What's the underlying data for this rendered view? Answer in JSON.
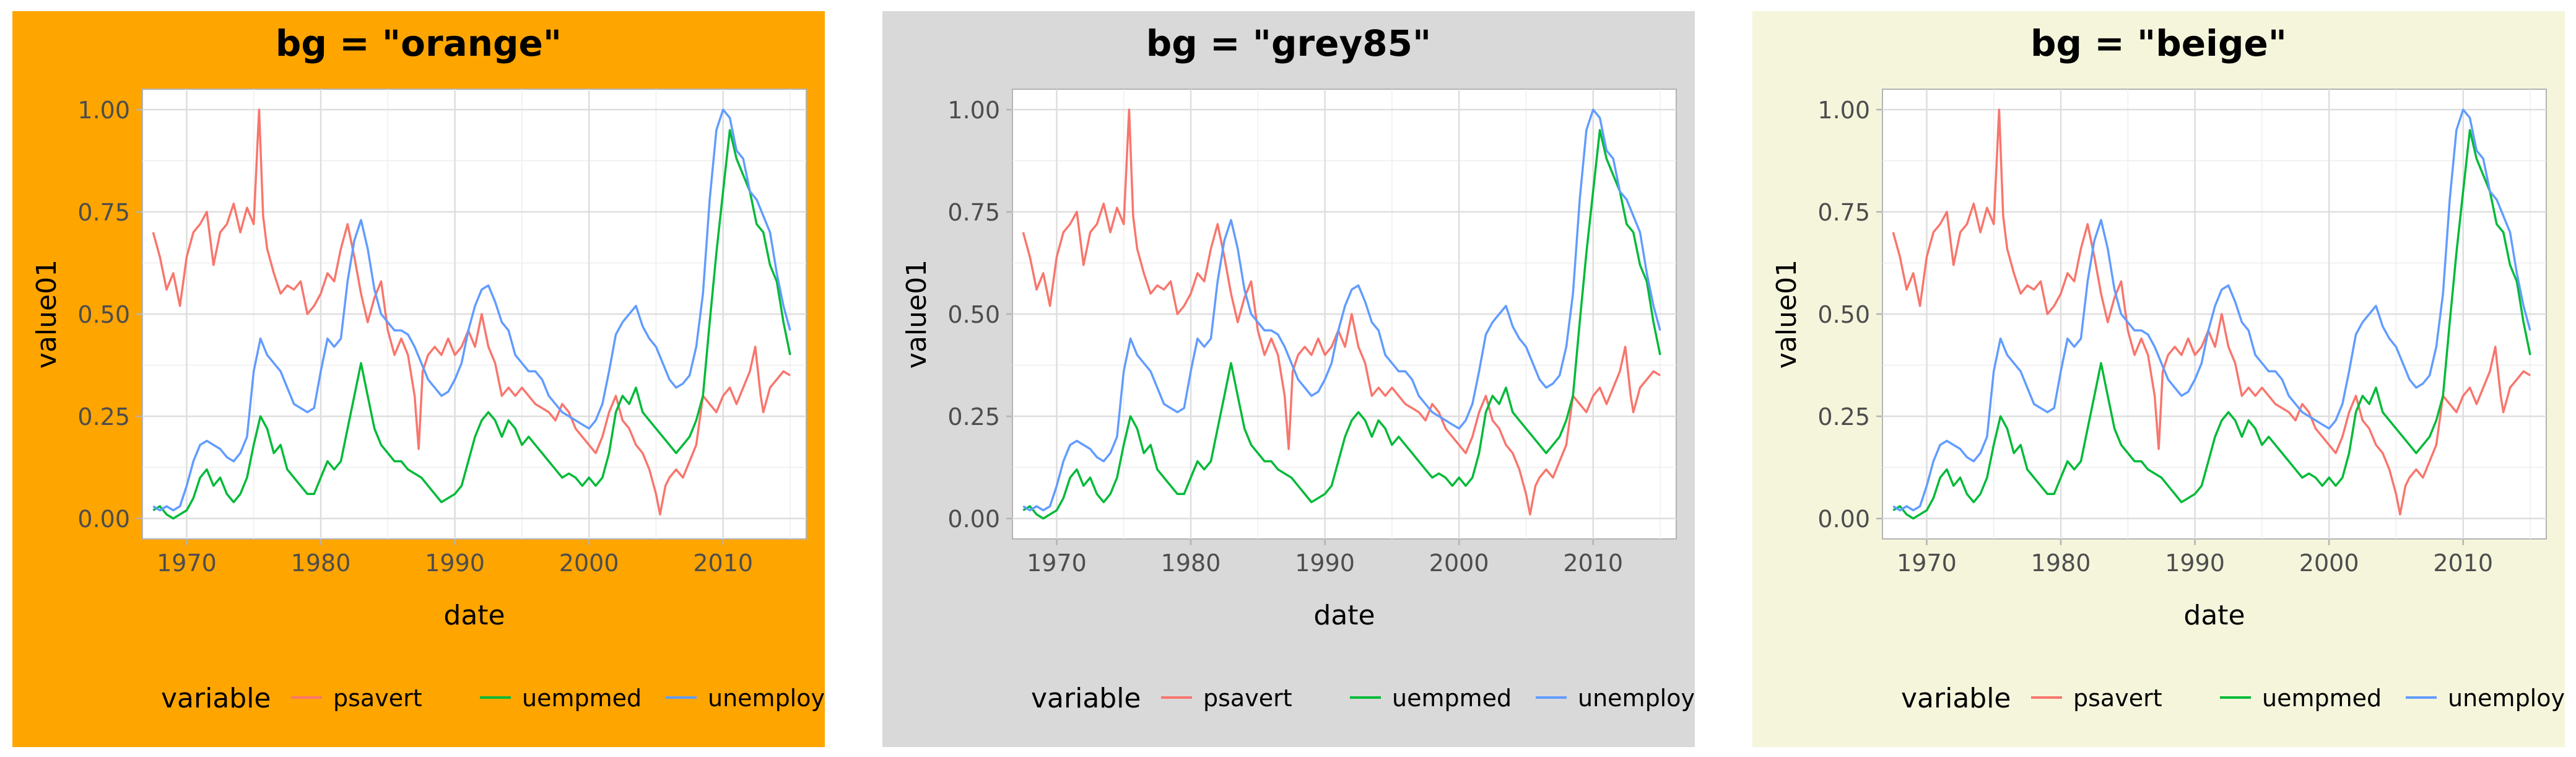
{
  "chart_data": [
    {
      "type": "line",
      "title": "bg = \"orange\"",
      "background": "#FFA500",
      "xlabel": "date",
      "ylabel": "value01",
      "xlim": [
        1966.7,
        2016.2
      ],
      "ylim": [
        -0.05,
        1.05
      ],
      "x_ticks": [
        1970,
        1980,
        1990,
        2000,
        2010
      ],
      "x_tick_labels": [
        "1970",
        "1980",
        "1990",
        "2000",
        "2010"
      ],
      "y_ticks": [
        0,
        0.25,
        0.5,
        0.75,
        1
      ],
      "y_tick_labels": [
        "0.00",
        "0.25",
        "0.50",
        "0.75",
        "1.00"
      ],
      "grid": true,
      "legend_title": "variable",
      "legend_position": "bottom"
    },
    {
      "type": "line",
      "title": "bg = \"grey85\"",
      "background": "#D9D9D9",
      "xlabel": "date",
      "ylabel": "value01",
      "xlim": [
        1966.7,
        2016.2
      ],
      "ylim": [
        -0.05,
        1.05
      ],
      "x_ticks": [
        1970,
        1980,
        1990,
        2000,
        2010
      ],
      "x_tick_labels": [
        "1970",
        "1980",
        "1990",
        "2000",
        "2010"
      ],
      "y_ticks": [
        0,
        0.25,
        0.5,
        0.75,
        1
      ],
      "y_tick_labels": [
        "0.00",
        "0.25",
        "0.50",
        "0.75",
        "1.00"
      ],
      "grid": true,
      "legend_title": "variable",
      "legend_position": "bottom"
    },
    {
      "type": "line",
      "title": "bg = \"beige\"",
      "background": "#F5F5DC",
      "xlabel": "date",
      "ylabel": "value01",
      "xlim": [
        1966.7,
        2016.2
      ],
      "ylim": [
        -0.05,
        1.05
      ],
      "x_ticks": [
        1970,
        1980,
        1990,
        2000,
        2010
      ],
      "x_tick_labels": [
        "1970",
        "1980",
        "1990",
        "2000",
        "2010"
      ],
      "y_ticks": [
        0,
        0.25,
        0.5,
        0.75,
        1
      ],
      "y_tick_labels": [
        "0.00",
        "0.25",
        "0.50",
        "0.75",
        "1.00"
      ],
      "grid": true,
      "legend_title": "variable",
      "legend_position": "bottom"
    }
  ],
  "series": [
    {
      "name": "psavert",
      "color": "#F8766D",
      "points": [
        [
          1967.5,
          0.7
        ],
        [
          1968,
          0.64
        ],
        [
          1968.5,
          0.56
        ],
        [
          1969,
          0.6
        ],
        [
          1969.5,
          0.52
        ],
        [
          1970,
          0.64
        ],
        [
          1970.5,
          0.7
        ],
        [
          1971,
          0.72
        ],
        [
          1971.5,
          0.75
        ],
        [
          1972,
          0.62
        ],
        [
          1972.5,
          0.7
        ],
        [
          1973,
          0.72
        ],
        [
          1973.5,
          0.77
        ],
        [
          1974,
          0.7
        ],
        [
          1974.5,
          0.76
        ],
        [
          1975,
          0.72
        ],
        [
          1975.4,
          1.0
        ],
        [
          1975.7,
          0.74
        ],
        [
          1976,
          0.66
        ],
        [
          1976.5,
          0.6
        ],
        [
          1977,
          0.55
        ],
        [
          1977.5,
          0.57
        ],
        [
          1978,
          0.56
        ],
        [
          1978.5,
          0.58
        ],
        [
          1979,
          0.5
        ],
        [
          1979.5,
          0.52
        ],
        [
          1980,
          0.55
        ],
        [
          1980.5,
          0.6
        ],
        [
          1981,
          0.58
        ],
        [
          1981.5,
          0.66
        ],
        [
          1982,
          0.72
        ],
        [
          1982.5,
          0.64
        ],
        [
          1983,
          0.55
        ],
        [
          1983.5,
          0.48
        ],
        [
          1984,
          0.54
        ],
        [
          1984.5,
          0.58
        ],
        [
          1985,
          0.46
        ],
        [
          1985.5,
          0.4
        ],
        [
          1986,
          0.44
        ],
        [
          1986.5,
          0.4
        ],
        [
          1987,
          0.3
        ],
        [
          1987.3,
          0.17
        ],
        [
          1987.6,
          0.36
        ],
        [
          1988,
          0.4
        ],
        [
          1988.5,
          0.42
        ],
        [
          1989,
          0.4
        ],
        [
          1989.5,
          0.44
        ],
        [
          1990,
          0.4
        ],
        [
          1990.5,
          0.42
        ],
        [
          1991,
          0.46
        ],
        [
          1991.5,
          0.42
        ],
        [
          1992,
          0.5
        ],
        [
          1992.5,
          0.42
        ],
        [
          1993,
          0.38
        ],
        [
          1993.5,
          0.3
        ],
        [
          1994,
          0.32
        ],
        [
          1994.5,
          0.3
        ],
        [
          1995,
          0.32
        ],
        [
          1995.5,
          0.3
        ],
        [
          1996,
          0.28
        ],
        [
          1996.5,
          0.27
        ],
        [
          1997,
          0.26
        ],
        [
          1997.5,
          0.24
        ],
        [
          1998,
          0.28
        ],
        [
          1998.5,
          0.26
        ],
        [
          1999,
          0.22
        ],
        [
          1999.5,
          0.2
        ],
        [
          2000,
          0.18
        ],
        [
          2000.5,
          0.16
        ],
        [
          2001,
          0.2
        ],
        [
          2001.5,
          0.26
        ],
        [
          2002,
          0.3
        ],
        [
          2002.5,
          0.24
        ],
        [
          2003,
          0.22
        ],
        [
          2003.5,
          0.18
        ],
        [
          2004,
          0.16
        ],
        [
          2004.5,
          0.12
        ],
        [
          2005,
          0.06
        ],
        [
          2005.3,
          0.01
        ],
        [
          2005.7,
          0.08
        ],
        [
          2006,
          0.1
        ],
        [
          2006.5,
          0.12
        ],
        [
          2007,
          0.1
        ],
        [
          2007.5,
          0.14
        ],
        [
          2008,
          0.18
        ],
        [
          2008.5,
          0.3
        ],
        [
          2009,
          0.28
        ],
        [
          2009.5,
          0.26
        ],
        [
          2010,
          0.3
        ],
        [
          2010.5,
          0.32
        ],
        [
          2011,
          0.28
        ],
        [
          2011.5,
          0.32
        ],
        [
          2012,
          0.36
        ],
        [
          2012.4,
          0.42
        ],
        [
          2012.8,
          0.3
        ],
        [
          2013,
          0.26
        ],
        [
          2013.5,
          0.32
        ],
        [
          2014,
          0.34
        ],
        [
          2014.5,
          0.36
        ],
        [
          2015,
          0.35
        ]
      ]
    },
    {
      "name": "uempmed",
      "color": "#00BA38",
      "points": [
        [
          1967.5,
          0.02
        ],
        [
          1968,
          0.03
        ],
        [
          1968.5,
          0.01
        ],
        [
          1969,
          0.0
        ],
        [
          1969.5,
          0.01
        ],
        [
          1970,
          0.02
        ],
        [
          1970.5,
          0.05
        ],
        [
          1971,
          0.1
        ],
        [
          1971.5,
          0.12
        ],
        [
          1972,
          0.08
        ],
        [
          1972.5,
          0.1
        ],
        [
          1973,
          0.06
        ],
        [
          1973.5,
          0.04
        ],
        [
          1974,
          0.06
        ],
        [
          1974.5,
          0.1
        ],
        [
          1975,
          0.18
        ],
        [
          1975.5,
          0.25
        ],
        [
          1976,
          0.22
        ],
        [
          1976.5,
          0.16
        ],
        [
          1977,
          0.18
        ],
        [
          1977.5,
          0.12
        ],
        [
          1978,
          0.1
        ],
        [
          1978.5,
          0.08
        ],
        [
          1979,
          0.06
        ],
        [
          1979.5,
          0.06
        ],
        [
          1980,
          0.1
        ],
        [
          1980.5,
          0.14
        ],
        [
          1981,
          0.12
        ],
        [
          1981.5,
          0.14
        ],
        [
          1982,
          0.22
        ],
        [
          1982.5,
          0.3
        ],
        [
          1983,
          0.38
        ],
        [
          1983.5,
          0.3
        ],
        [
          1984,
          0.22
        ],
        [
          1984.5,
          0.18
        ],
        [
          1985,
          0.16
        ],
        [
          1985.5,
          0.14
        ],
        [
          1986,
          0.14
        ],
        [
          1986.5,
          0.12
        ],
        [
          1987,
          0.11
        ],
        [
          1987.5,
          0.1
        ],
        [
          1988,
          0.08
        ],
        [
          1988.5,
          0.06
        ],
        [
          1989,
          0.04
        ],
        [
          1989.5,
          0.05
        ],
        [
          1990,
          0.06
        ],
        [
          1990.5,
          0.08
        ],
        [
          1991,
          0.14
        ],
        [
          1991.5,
          0.2
        ],
        [
          1992,
          0.24
        ],
        [
          1992.5,
          0.26
        ],
        [
          1993,
          0.24
        ],
        [
          1993.5,
          0.2
        ],
        [
          1994,
          0.24
        ],
        [
          1994.5,
          0.22
        ],
        [
          1995,
          0.18
        ],
        [
          1995.5,
          0.2
        ],
        [
          1996,
          0.18
        ],
        [
          1996.5,
          0.16
        ],
        [
          1997,
          0.14
        ],
        [
          1997.5,
          0.12
        ],
        [
          1998,
          0.1
        ],
        [
          1998.5,
          0.11
        ],
        [
          1999,
          0.1
        ],
        [
          1999.5,
          0.08
        ],
        [
          2000,
          0.1
        ],
        [
          2000.5,
          0.08
        ],
        [
          2001,
          0.1
        ],
        [
          2001.5,
          0.16
        ],
        [
          2002,
          0.26
        ],
        [
          2002.5,
          0.3
        ],
        [
          2003,
          0.28
        ],
        [
          2003.5,
          0.32
        ],
        [
          2004,
          0.26
        ],
        [
          2004.5,
          0.24
        ],
        [
          2005,
          0.22
        ],
        [
          2005.5,
          0.2
        ],
        [
          2006,
          0.18
        ],
        [
          2006.5,
          0.16
        ],
        [
          2007,
          0.18
        ],
        [
          2007.5,
          0.2
        ],
        [
          2008,
          0.24
        ],
        [
          2008.5,
          0.3
        ],
        [
          2009,
          0.48
        ],
        [
          2009.5,
          0.65
        ],
        [
          2010,
          0.8
        ],
        [
          2010.5,
          0.95
        ],
        [
          2011,
          0.88
        ],
        [
          2011.5,
          0.84
        ],
        [
          2012,
          0.8
        ],
        [
          2012.5,
          0.72
        ],
        [
          2013,
          0.7
        ],
        [
          2013.5,
          0.62
        ],
        [
          2014,
          0.58
        ],
        [
          2014.5,
          0.48
        ],
        [
          2015,
          0.4
        ]
      ]
    },
    {
      "name": "unemploy",
      "color": "#619CFF",
      "points": [
        [
          1967.5,
          0.03
        ],
        [
          1968,
          0.02
        ],
        [
          1968.5,
          0.03
        ],
        [
          1969,
          0.02
        ],
        [
          1969.5,
          0.03
        ],
        [
          1970,
          0.08
        ],
        [
          1970.5,
          0.14
        ],
        [
          1971,
          0.18
        ],
        [
          1971.5,
          0.19
        ],
        [
          1972,
          0.18
        ],
        [
          1972.5,
          0.17
        ],
        [
          1973,
          0.15
        ],
        [
          1973.5,
          0.14
        ],
        [
          1974,
          0.16
        ],
        [
          1974.5,
          0.2
        ],
        [
          1975,
          0.36
        ],
        [
          1975.5,
          0.44
        ],
        [
          1976,
          0.4
        ],
        [
          1976.5,
          0.38
        ],
        [
          1977,
          0.36
        ],
        [
          1977.5,
          0.32
        ],
        [
          1978,
          0.28
        ],
        [
          1978.5,
          0.27
        ],
        [
          1979,
          0.26
        ],
        [
          1979.5,
          0.27
        ],
        [
          1980,
          0.36
        ],
        [
          1980.5,
          0.44
        ],
        [
          1981,
          0.42
        ],
        [
          1981.5,
          0.44
        ],
        [
          1982,
          0.58
        ],
        [
          1982.5,
          0.68
        ],
        [
          1983,
          0.73
        ],
        [
          1983.5,
          0.66
        ],
        [
          1984,
          0.56
        ],
        [
          1984.5,
          0.5
        ],
        [
          1985,
          0.48
        ],
        [
          1985.5,
          0.46
        ],
        [
          1986,
          0.46
        ],
        [
          1986.5,
          0.45
        ],
        [
          1987,
          0.42
        ],
        [
          1987.5,
          0.38
        ],
        [
          1988,
          0.34
        ],
        [
          1988.5,
          0.32
        ],
        [
          1989,
          0.3
        ],
        [
          1989.5,
          0.31
        ],
        [
          1990,
          0.34
        ],
        [
          1990.5,
          0.38
        ],
        [
          1991,
          0.46
        ],
        [
          1991.5,
          0.52
        ],
        [
          1992,
          0.56
        ],
        [
          1992.5,
          0.57
        ],
        [
          1993,
          0.53
        ],
        [
          1993.5,
          0.48
        ],
        [
          1994,
          0.46
        ],
        [
          1994.5,
          0.4
        ],
        [
          1995,
          0.38
        ],
        [
          1995.5,
          0.36
        ],
        [
          1996,
          0.36
        ],
        [
          1996.5,
          0.34
        ],
        [
          1997,
          0.3
        ],
        [
          1997.5,
          0.28
        ],
        [
          1998,
          0.26
        ],
        [
          1998.5,
          0.25
        ],
        [
          1999,
          0.24
        ],
        [
          1999.5,
          0.23
        ],
        [
          2000,
          0.22
        ],
        [
          2000.5,
          0.24
        ],
        [
          2001,
          0.28
        ],
        [
          2001.5,
          0.36
        ],
        [
          2002,
          0.45
        ],
        [
          2002.5,
          0.48
        ],
        [
          2003,
          0.5
        ],
        [
          2003.5,
          0.52
        ],
        [
          2004,
          0.47
        ],
        [
          2004.5,
          0.44
        ],
        [
          2005,
          0.42
        ],
        [
          2005.5,
          0.38
        ],
        [
          2006,
          0.34
        ],
        [
          2006.5,
          0.32
        ],
        [
          2007,
          0.33
        ],
        [
          2007.5,
          0.35
        ],
        [
          2008,
          0.42
        ],
        [
          2008.5,
          0.55
        ],
        [
          2009,
          0.78
        ],
        [
          2009.5,
          0.95
        ],
        [
          2010,
          1.0
        ],
        [
          2010.5,
          0.98
        ],
        [
          2011,
          0.9
        ],
        [
          2011.5,
          0.88
        ],
        [
          2012,
          0.8
        ],
        [
          2012.5,
          0.78
        ],
        [
          2013,
          0.74
        ],
        [
          2013.5,
          0.7
        ],
        [
          2014,
          0.6
        ],
        [
          2014.5,
          0.52
        ],
        [
          2015,
          0.46
        ]
      ]
    }
  ]
}
